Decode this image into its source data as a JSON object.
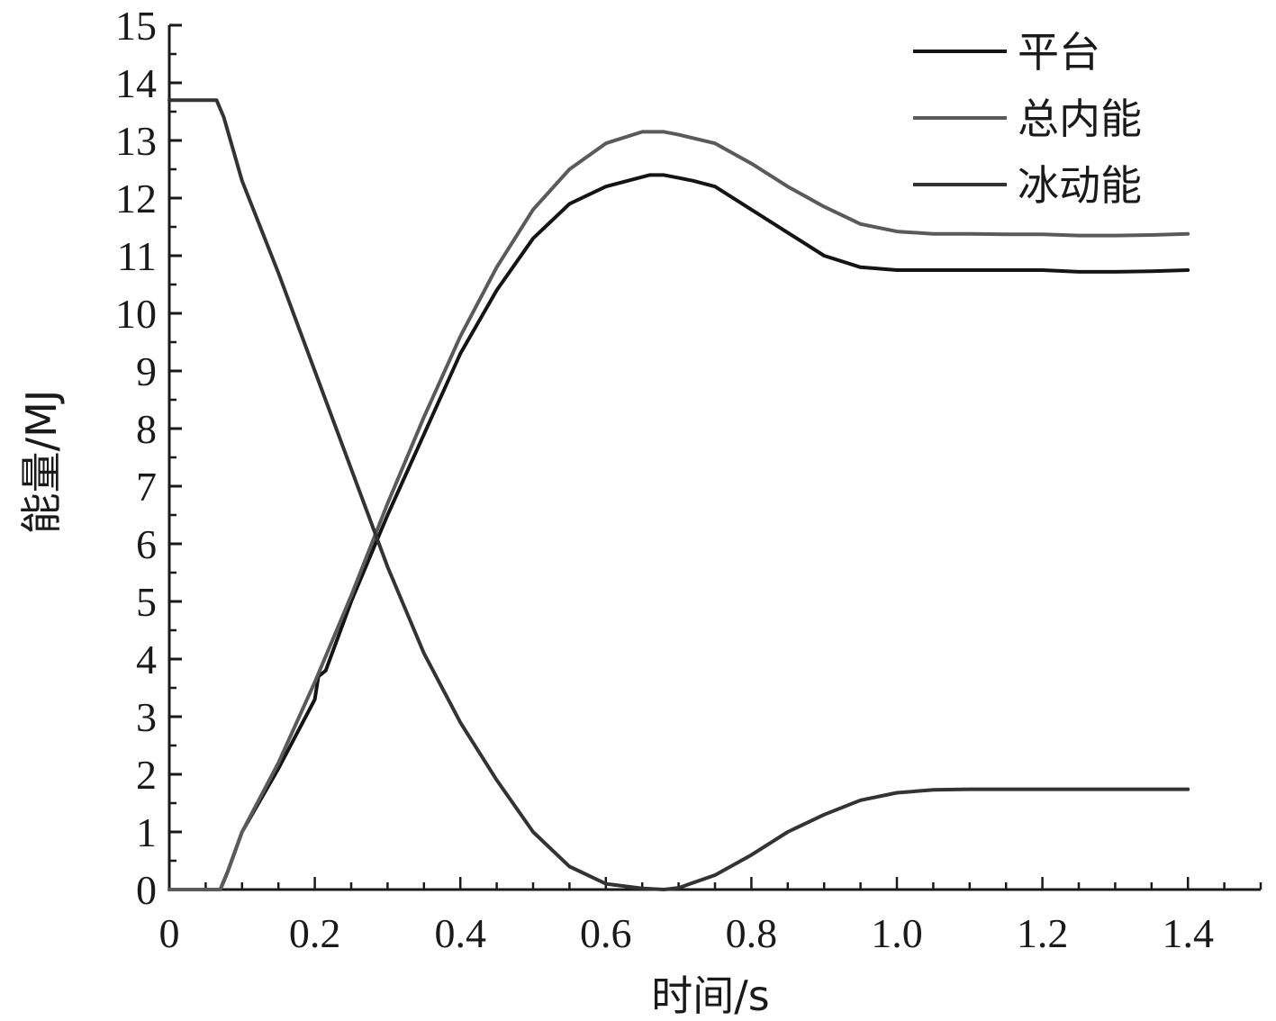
{
  "chart_data": {
    "type": "line",
    "title": "",
    "xlabel": "时间/s",
    "ylabel": "能量/MJ",
    "xlim": [
      0,
      1.5
    ],
    "ylim": [
      0,
      15
    ],
    "x_ticks": [
      0,
      0.2,
      0.4,
      0.6,
      0.8,
      1.0,
      1.2,
      1.4
    ],
    "x_tick_labels": [
      "0",
      "0.2",
      "0.4",
      "0.6",
      "0.8",
      "1.0",
      "1.2",
      "1.4"
    ],
    "y_ticks": [
      0,
      1,
      2,
      3,
      4,
      5,
      6,
      7,
      8,
      9,
      10,
      11,
      12,
      13,
      14,
      15
    ],
    "y_tick_labels": [
      "0",
      "1",
      "2",
      "3",
      "4",
      "5",
      "6",
      "7",
      "8",
      "9",
      "10",
      "11",
      "12",
      "13",
      "14",
      "15"
    ],
    "grid": false,
    "legend_position": "top-right",
    "series": [
      {
        "name": "平台",
        "color": "#141414",
        "x": [
          0,
          0.07,
          0.08,
          0.1,
          0.15,
          0.2,
          0.205,
          0.215,
          0.25,
          0.3,
          0.35,
          0.4,
          0.45,
          0.5,
          0.55,
          0.6,
          0.63,
          0.66,
          0.68,
          0.7,
          0.72,
          0.75,
          0.8,
          0.85,
          0.9,
          0.95,
          1.0,
          1.05,
          1.1,
          1.15,
          1.2,
          1.25,
          1.3,
          1.35,
          1.4
        ],
        "y": [
          0,
          0,
          0.3,
          1.0,
          2.1,
          3.3,
          3.7,
          3.8,
          5.0,
          6.5,
          7.9,
          9.3,
          10.4,
          11.3,
          11.9,
          12.2,
          12.3,
          12.4,
          12.4,
          12.35,
          12.3,
          12.2,
          11.8,
          11.4,
          11.0,
          10.8,
          10.75,
          10.75,
          10.75,
          10.75,
          10.75,
          10.72,
          10.72,
          10.73,
          10.75
        ]
      },
      {
        "name": "总内能",
        "color": "#5a5a5a",
        "x": [
          0,
          0.07,
          0.08,
          0.1,
          0.15,
          0.2,
          0.25,
          0.3,
          0.35,
          0.4,
          0.45,
          0.5,
          0.55,
          0.6,
          0.65,
          0.68,
          0.7,
          0.75,
          0.8,
          0.85,
          0.9,
          0.95,
          1.0,
          1.05,
          1.1,
          1.15,
          1.2,
          1.25,
          1.3,
          1.35,
          1.4
        ],
        "y": [
          0,
          0,
          0.3,
          1.0,
          2.2,
          3.6,
          5.1,
          6.7,
          8.2,
          9.6,
          10.8,
          11.8,
          12.5,
          12.95,
          13.15,
          13.15,
          13.1,
          12.95,
          12.6,
          12.2,
          11.85,
          11.55,
          11.42,
          11.38,
          11.38,
          11.37,
          11.37,
          11.35,
          11.35,
          11.36,
          11.38
        ]
      },
      {
        "name": "冰动能",
        "color": "#333333",
        "x": [
          0,
          0.065,
          0.075,
          0.1,
          0.15,
          0.2,
          0.25,
          0.3,
          0.35,
          0.4,
          0.45,
          0.5,
          0.55,
          0.6,
          0.65,
          0.68,
          0.7,
          0.75,
          0.8,
          0.85,
          0.9,
          0.95,
          1.0,
          1.05,
          1.1,
          1.2,
          1.3,
          1.4
        ],
        "y": [
          13.7,
          13.7,
          13.4,
          12.3,
          10.7,
          9.0,
          7.3,
          5.6,
          4.1,
          2.9,
          1.9,
          1.0,
          0.4,
          0.1,
          0.02,
          0.0,
          0.03,
          0.25,
          0.6,
          1.0,
          1.3,
          1.55,
          1.68,
          1.73,
          1.74,
          1.74,
          1.74,
          1.74
        ]
      }
    ]
  }
}
